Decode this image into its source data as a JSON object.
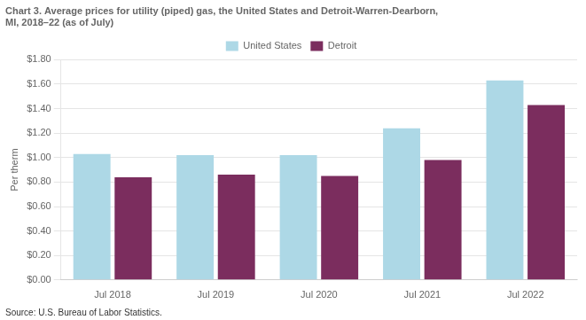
{
  "chart_data": {
    "type": "bar",
    "title": [
      "Chart 3. Average prices for utility (piped) gas, the United States and Detroit-Warren-Dearborn,",
      "MI, 2018–22 (as of July)"
    ],
    "ylabel": "Per therm",
    "annotations": [
      "Source: U.S. Bureau of Labor Statistics."
    ],
    "categories": [
      "Jul 2018",
      "Jul 2019",
      "Jul 2020",
      "Jul 2021",
      "Jul 2022"
    ],
    "series": [
      {
        "name": "United States",
        "color": "#add8e6",
        "values": [
          1.03,
          1.02,
          1.02,
          1.24,
          1.63
        ]
      },
      {
        "name": "Detroit",
        "color": "#7b2d5e",
        "values": [
          0.84,
          0.86,
          0.85,
          0.98,
          1.43
        ]
      }
    ],
    "ylim": [
      0.0,
      1.8
    ],
    "yticks": [
      {
        "value": 0.0,
        "label": "$0.00"
      },
      {
        "value": 0.2,
        "label": "$0.20"
      },
      {
        "value": 0.4,
        "label": "$0.40"
      },
      {
        "value": 0.6,
        "label": "$0.60"
      },
      {
        "value": 0.8,
        "label": "$0.80"
      },
      {
        "value": 1.0,
        "label": "$1.00"
      },
      {
        "value": 1.2,
        "label": "$1.20"
      },
      {
        "value": 1.4,
        "label": "$1.40"
      },
      {
        "value": 1.6,
        "label": "$1.60"
      },
      {
        "value": 1.8,
        "label": "$1.80"
      }
    ],
    "grid": true,
    "legend": "top"
  }
}
